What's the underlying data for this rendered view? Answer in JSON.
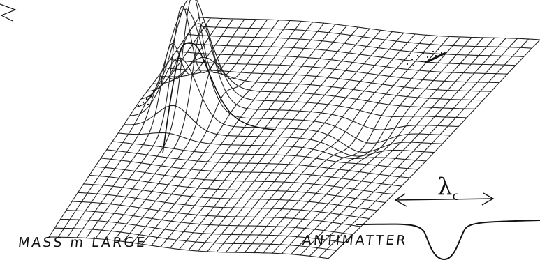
{
  "labels": {
    "mass": "MASS  m  LARGE",
    "antimatter": "ANTIMATTER",
    "lambda_symbol": "λ",
    "lambda_subscript": "c"
  },
  "colors": {
    "ink": "#111111",
    "background": "#ffffff"
  }
}
